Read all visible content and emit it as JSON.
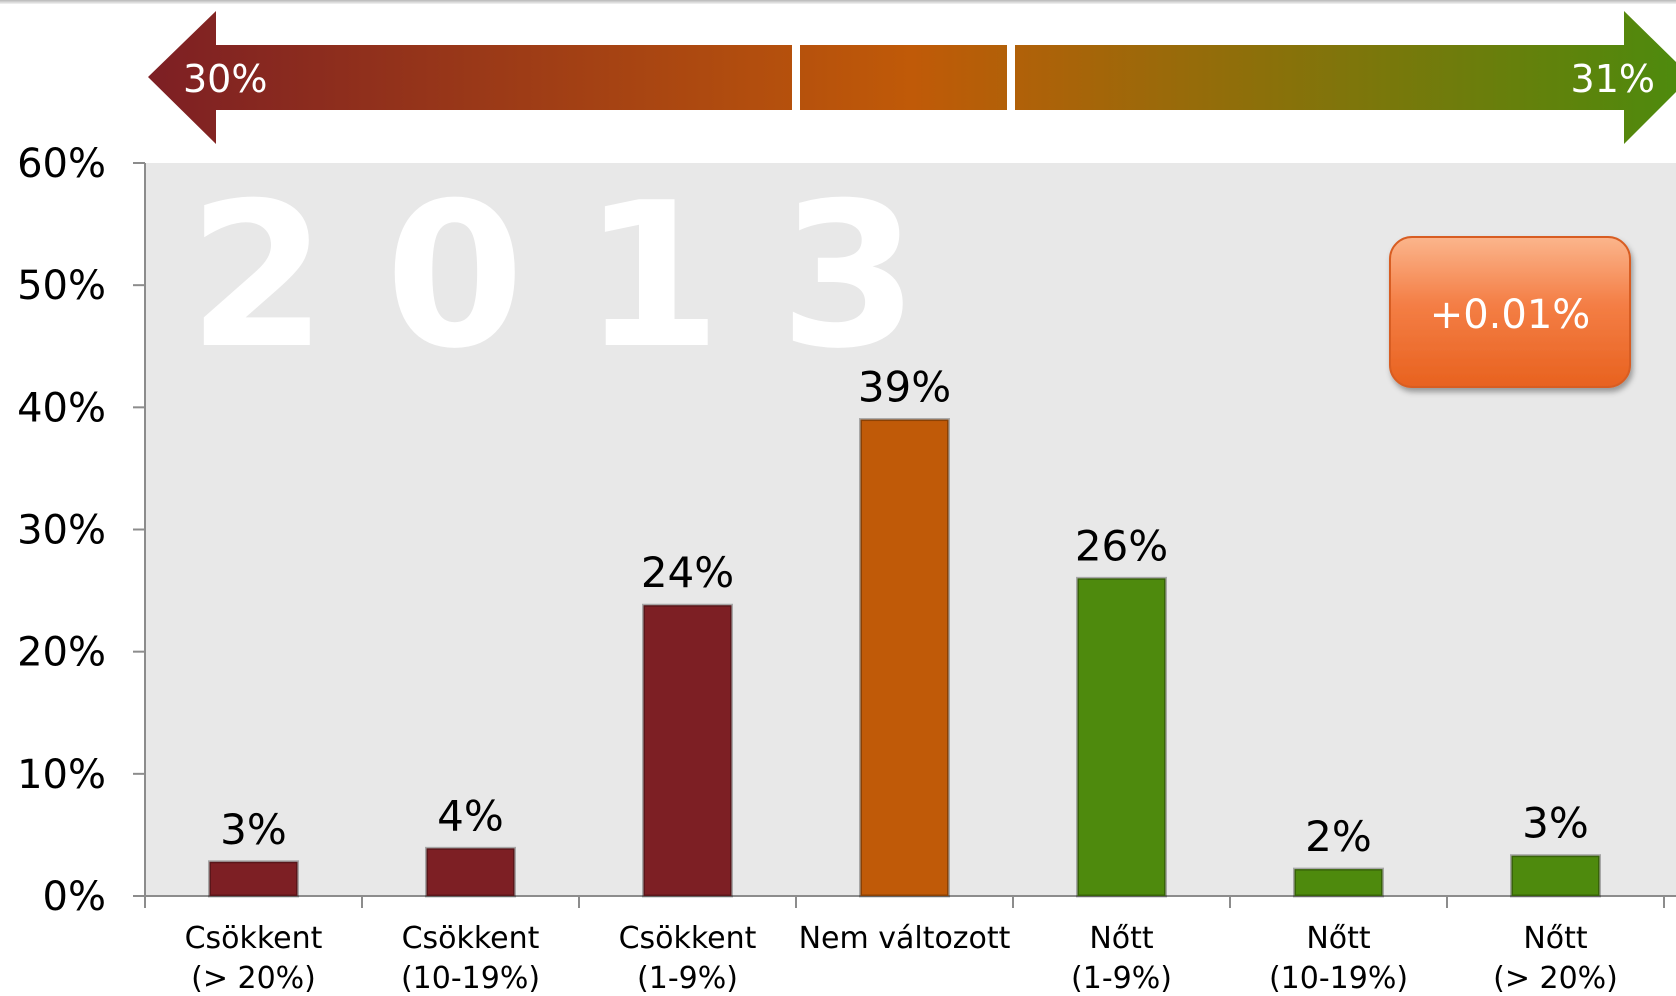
{
  "banner": {
    "left_label": "30%",
    "right_label": "31%",
    "colors": {
      "decrease": "#7d1f24",
      "neutral": "#c05a08",
      "increase": "#4e8a0d"
    }
  },
  "watermark": "2013",
  "delta_badge": "+0.01%",
  "chart_data": {
    "type": "bar",
    "title": "",
    "xlabel": "",
    "ylabel": "",
    "ylim": [
      0,
      60
    ],
    "yticks": [
      "0%",
      "10%",
      "20%",
      "30%",
      "40%",
      "50%",
      "60%"
    ],
    "categories": [
      [
        "Csökkent",
        "(> 20%)"
      ],
      [
        "Csökkent",
        "(10-19%)"
      ],
      [
        "Csökkent",
        "(1-9%)"
      ],
      [
        "Nem változott",
        ""
      ],
      [
        "Nőtt",
        "(1-9%)"
      ],
      [
        "Nőtt",
        "(10-19%)"
      ],
      [
        "Nőtt",
        "(> 20%)"
      ]
    ],
    "values": [
      2.8,
      3.9,
      23.8,
      39,
      26,
      2.2,
      3.3
    ],
    "value_labels": [
      "3%",
      "4%",
      "24%",
      "39%",
      "26%",
      "2%",
      "3%"
    ],
    "bar_colors": [
      "#7d1f24",
      "#7d1f24",
      "#7d1f24",
      "#c05a08",
      "#4e8a0d",
      "#4e8a0d",
      "#4e8a0d"
    ],
    "grid": false,
    "legend": "none"
  }
}
